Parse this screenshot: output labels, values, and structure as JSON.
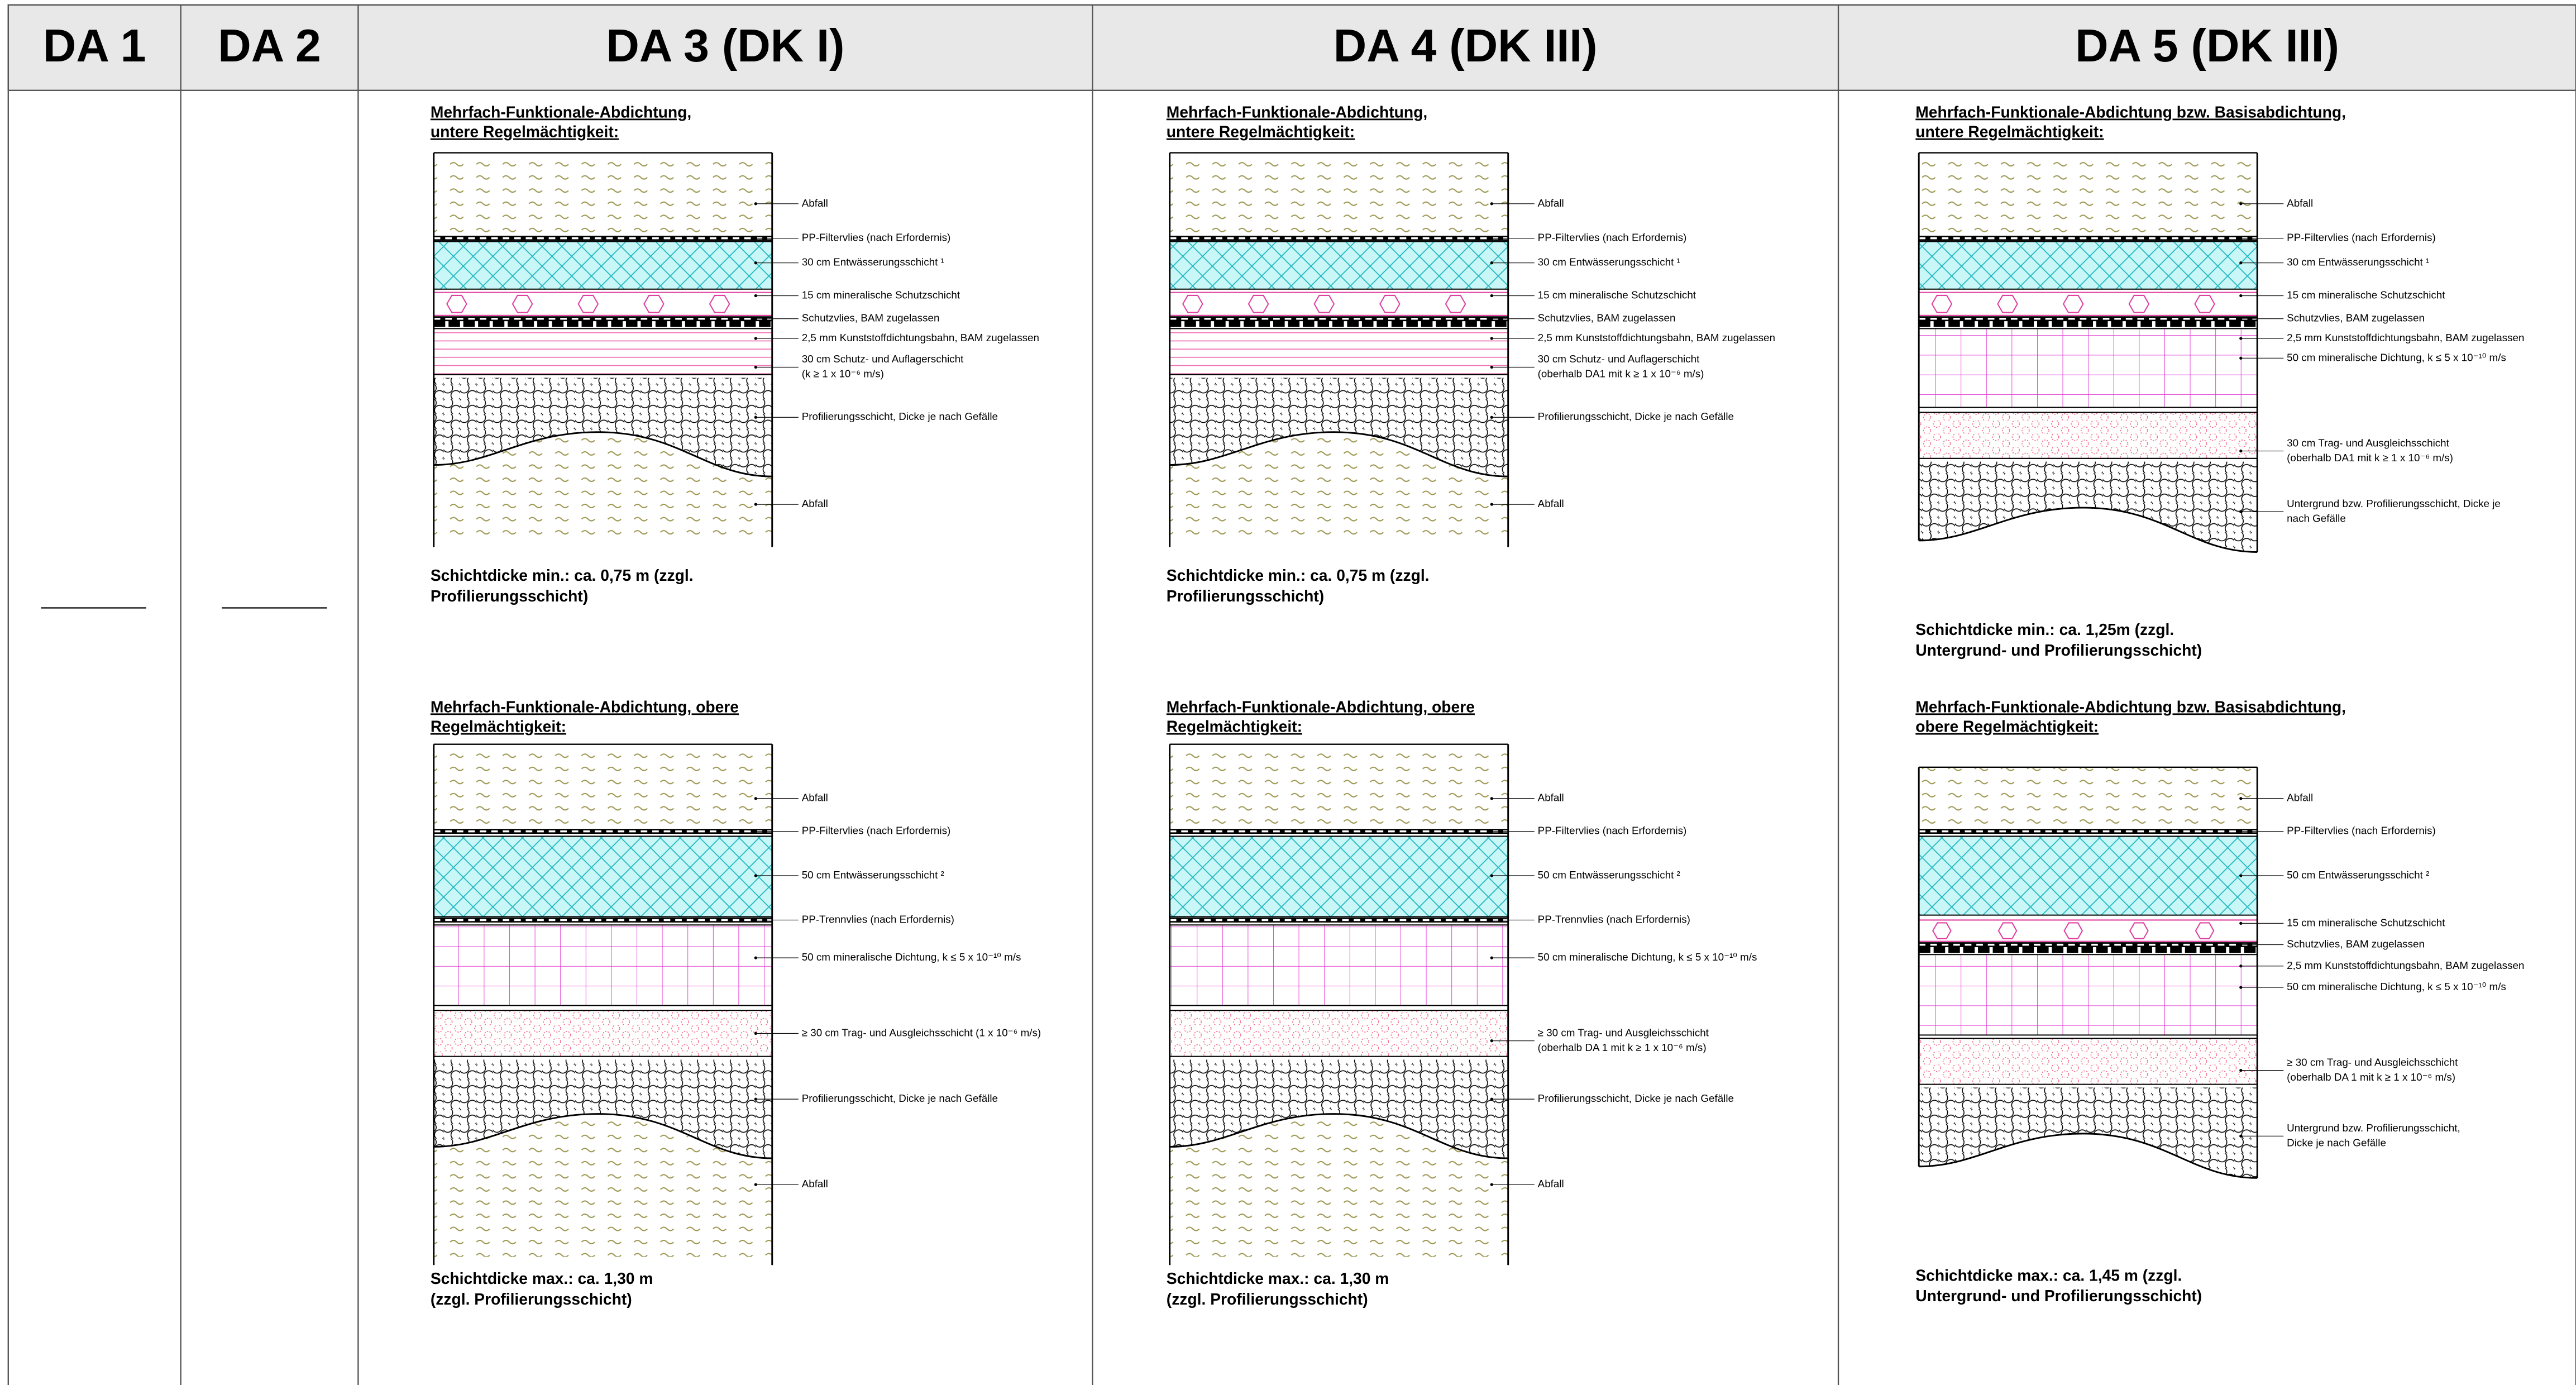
{
  "columns": [
    {
      "title": "DA 1"
    },
    {
      "title": "DA 2"
    },
    {
      "title": "DA 3 (DK I)",
      "diagrams": [
        {
          "title": [
            "Mehrfach-Funktionale-Abdichtung,",
            "untere Regelmächtigkeit:"
          ],
          "layers": [
            [
              "Abfall"
            ],
            [
              "PP-Filtervlies (nach Erfordernis)"
            ],
            [
              "30 cm Entwässerungsschicht ¹"
            ],
            [
              "15 cm mineralische Schutzschicht"
            ],
            [
              "Schutzvlies, BAM zugelassen"
            ],
            [
              "2,5 mm Kunststoffdichtungsbahn, BAM zugelassen"
            ],
            [
              "30 cm Schutz- und Auflagerschicht",
              "(k ≥ 1 x 10⁻⁶ m/s)"
            ],
            [
              "Profilierungsschicht, Dicke je nach Gefälle"
            ],
            [
              "Abfall"
            ]
          ],
          "thickness": [
            "Schichtdicke min.: ca. 0,75 m (zzgl.",
            "Profilierungsschicht)"
          ]
        },
        {
          "title": [
            "Mehrfach-Funktionale-Abdichtung, obere",
            "Regelmächtigkeit:"
          ],
          "layers": [
            [
              "Abfall"
            ],
            [
              "PP-Filtervlies (nach Erfordernis)"
            ],
            [
              "50 cm Entwässerungsschicht ²"
            ],
            [
              "PP-Trennvlies (nach Erfordernis)"
            ],
            [
              "50 cm mineralische Dichtung, k ≤ 5 x 10⁻¹⁰ m/s"
            ],
            [
              "≥ 30 cm Trag- und Ausgleichsschicht  (1 x 10⁻⁶ m/s)"
            ],
            [
              "Profilierungsschicht, Dicke je nach Gefälle"
            ],
            [
              "Abfall"
            ]
          ],
          "thickness": [
            "Schichtdicke max.:  ca. 1,30 m",
            "(zzgl. Profilierungsschicht)"
          ]
        }
      ]
    },
    {
      "title": "DA 4 (DK III)",
      "diagrams": [
        {
          "title": [
            "Mehrfach-Funktionale-Abdichtung,",
            "untere Regelmächtigkeit:"
          ],
          "layers": [
            [
              "Abfall"
            ],
            [
              "PP-Filtervlies (nach Erfordernis)"
            ],
            [
              "30 cm Entwässerungsschicht ¹"
            ],
            [
              "15 cm mineralische Schutzschicht"
            ],
            [
              "Schutzvlies, BAM zugelassen"
            ],
            [
              "2,5 mm Kunststoffdichtungsbahn, BAM zugelassen"
            ],
            [
              "30 cm Schutz- und Auflagerschicht",
              "(oberhalb DA1 mit k ≥ 1 x 10⁻⁶ m/s)"
            ],
            [
              "Profilierungsschicht, Dicke je nach Gefälle"
            ],
            [
              "Abfall"
            ]
          ],
          "thickness": [
            "Schichtdicke min.: ca. 0,75 m (zzgl.",
            "Profilierungsschicht)"
          ]
        },
        {
          "title": [
            "Mehrfach-Funktionale-Abdichtung, obere",
            "Regelmächtigkeit:"
          ],
          "layers": [
            [
              "Abfall"
            ],
            [
              "PP-Filtervlies (nach Erfordernis)"
            ],
            [
              "50 cm Entwässerungsschicht ²"
            ],
            [
              "PP-Trennvlies (nach Erfordernis)"
            ],
            [
              "50 cm mineralische Dichtung, k ≤ 5 x 10⁻¹⁰ m/s"
            ],
            [
              "≥ 30 cm Trag- und Ausgleichsschicht",
              "(oberhalb DA 1 mit k ≥ 1 x 10⁻⁶ m/s)"
            ],
            [
              "Profilierungsschicht, Dicke je nach Gefälle"
            ],
            [
              "Abfall"
            ]
          ],
          "thickness": [
            "Schichtdicke max.:  ca. 1,30 m",
            "(zzgl. Profilierungsschicht)"
          ]
        }
      ]
    },
    {
      "title": "DA 5 (DK III)",
      "diagrams": [
        {
          "title": [
            "Mehrfach-Funktionale-Abdichtung bzw. Basisabdichtung,",
            "untere Regelmächtigkeit:"
          ],
          "layers": [
            [
              "Abfall"
            ],
            [
              "PP-Filtervlies (nach Erfordernis)"
            ],
            [
              "30 cm Entwässerungsschicht ¹"
            ],
            [
              "15 cm mineralische Schutzschicht"
            ],
            [
              "Schutzvlies, BAM zugelassen"
            ],
            [
              "2,5 mm Kunststoffdichtungsbahn, BAM zugelassen"
            ],
            [
              "50 cm mineralische Dichtung, k ≤ 5 x 10⁻¹⁰ m/s"
            ],
            [
              "30 cm Trag- und Ausgleichsschicht",
              "(oberhalb DA1 mit k ≥ 1 x 10⁻⁶ m/s)"
            ],
            [
              "Untergrund bzw. Profilierungsschicht, Dicke je",
              "nach Gefälle"
            ]
          ],
          "thickness": [
            "Schichtdicke min.: ca. 1,25m (zzgl.",
            "Untergrund- und Profilierungsschicht)"
          ]
        },
        {
          "title": [
            "Mehrfach-Funktionale-Abdichtung bzw. Basisabdichtung,",
            "obere Regelmächtigkeit:"
          ],
          "layers": [
            [
              "Abfall"
            ],
            [
              "PP-Filtervlies (nach Erfordernis)"
            ],
            [
              "50 cm Entwässerungsschicht ²"
            ],
            [
              "15 cm mineralische Schutzschicht"
            ],
            [
              "Schutzvlies, BAM zugelassen"
            ],
            [
              "2,5 mm Kunststoffdichtungsbahn, BAM zugelassen"
            ],
            [
              "50 cm mineralische Dichtung, k ≤ 5 x 10⁻¹⁰ m/s"
            ],
            [
              "≥ 30 cm Trag- und Ausgleichsschicht",
              "(oberhalb DA 1 mit k ≥ 1 x 10⁻⁶ m/s)"
            ],
            [
              "Untergrund bzw. Profilierungsschicht,",
              "Dicke je nach Gefälle"
            ]
          ],
          "thickness": [
            "Schichtdicke max.: ca. 1,45 m (zzgl.",
            "Untergrund- und Profilierungsschicht)"
          ]
        }
      ]
    }
  ]
}
